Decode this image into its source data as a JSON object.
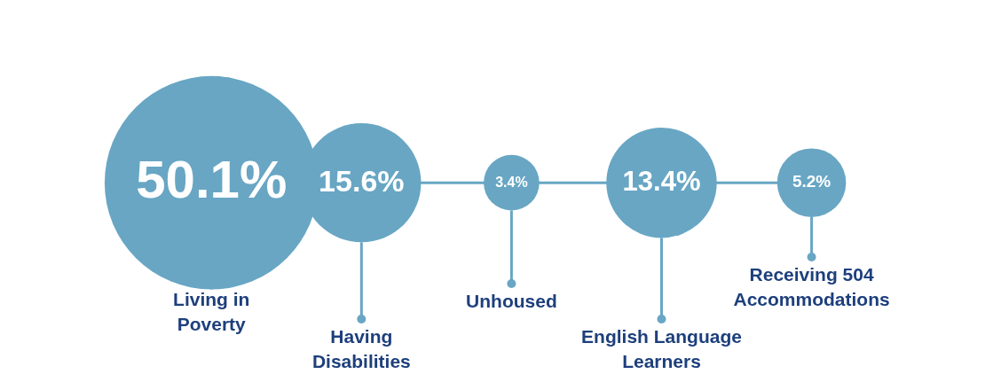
{
  "chart_data": {
    "type": "other",
    "categories": [
      "Living in Poverty",
      "Having Disabilities",
      "Unhoused",
      "English Language Learners",
      "Receiving 504 Accommodations"
    ],
    "values": [
      50.1,
      15.6,
      3.4,
      13.4,
      5.2
    ],
    "value_labels": [
      "50.1%",
      "15.6%",
      "3.4%",
      "13.4%",
      "5.2%"
    ],
    "color": "#68a6c4"
  }
}
